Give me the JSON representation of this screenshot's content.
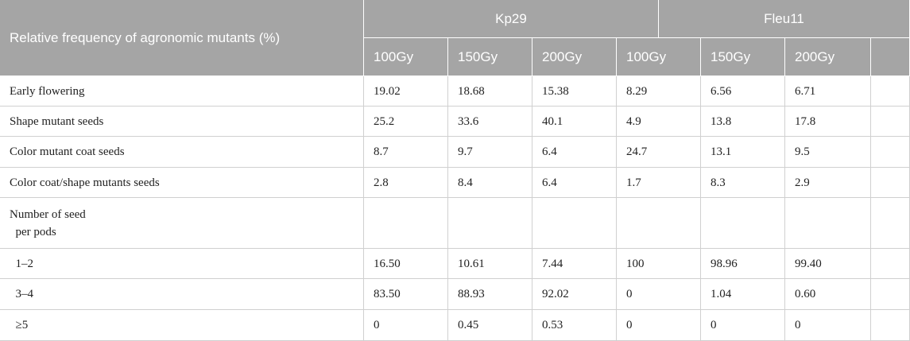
{
  "header": {
    "title": "Relative frequency of agronomic mutants (%)",
    "groups": [
      "Kp29",
      "Fleu11"
    ],
    "columns": [
      "100Gy",
      "150Gy",
      "200Gy",
      "100Gy",
      "150Gy",
      "200Gy"
    ]
  },
  "table": {
    "rows": [
      {
        "label": "Early flowering",
        "values": [
          "19.02",
          "18.68",
          "15.38",
          "8.29",
          "6.56",
          "6.71"
        ]
      },
      {
        "label": "Shape mutant seeds",
        "values": [
          "25.2",
          "33.6",
          "40.1",
          "4.9",
          "13.8",
          "17.8"
        ]
      },
      {
        "label": "Color mutant coat seeds",
        "values": [
          "8.7",
          "9.7",
          "6.4",
          "24.7",
          "13.1",
          "9.5"
        ]
      },
      {
        "label": "Color coat/shape mutants seeds",
        "values": [
          "2.8",
          "8.4",
          "6.4",
          "1.7",
          "8.3",
          "2.9"
        ]
      },
      {
        "label": "Number of seed\n  per pods",
        "values": []
      },
      {
        "label": "  1–2",
        "values": [
          "16.50",
          "10.61",
          "7.44",
          "100",
          "98.96",
          "99.40"
        ]
      },
      {
        "label": "  3–4",
        "values": [
          "83.50",
          "88.93",
          "92.02",
          "0",
          "1.04",
          "0.60"
        ]
      },
      {
        "label": "  ≥5",
        "values": [
          "0",
          "0.45",
          "0.53",
          "0",
          "0",
          "0"
        ]
      }
    ]
  }
}
